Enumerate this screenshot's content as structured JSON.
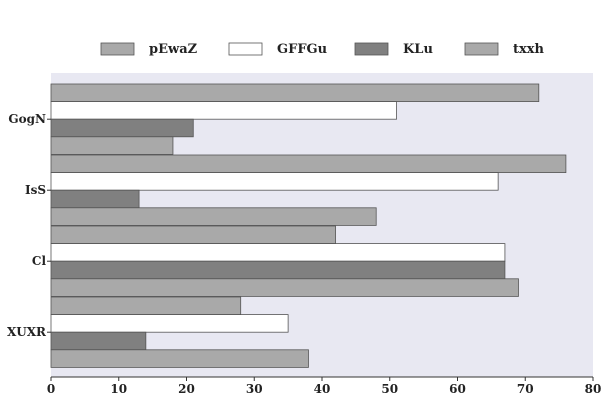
{
  "chart_data": {
    "type": "bar",
    "orientation": "horizontal",
    "title": "",
    "xlabel": "",
    "ylabel": "",
    "categories": [
      "GogN",
      "IsS",
      "Cl",
      "XUXR"
    ],
    "xlim": [
      0,
      80
    ],
    "xticks": [
      0,
      10,
      20,
      30,
      40,
      50,
      60,
      70,
      80
    ],
    "grid": false,
    "legend_position": "top",
    "series": [
      {
        "name": "pEwaZ",
        "color": "#a9a9a9",
        "values": [
          72,
          76,
          42,
          28
        ]
      },
      {
        "name": "GFFGu",
        "color": "#ffffff",
        "values": [
          51,
          66,
          67,
          35
        ]
      },
      {
        "name": "KLu",
        "color": "#808080",
        "values": [
          21,
          13,
          67,
          14
        ]
      },
      {
        "name": "txxh",
        "color": "#a9a9a9",
        "values": [
          18,
          48,
          69,
          38
        ]
      }
    ],
    "background_color": "#e8e8f2"
  }
}
